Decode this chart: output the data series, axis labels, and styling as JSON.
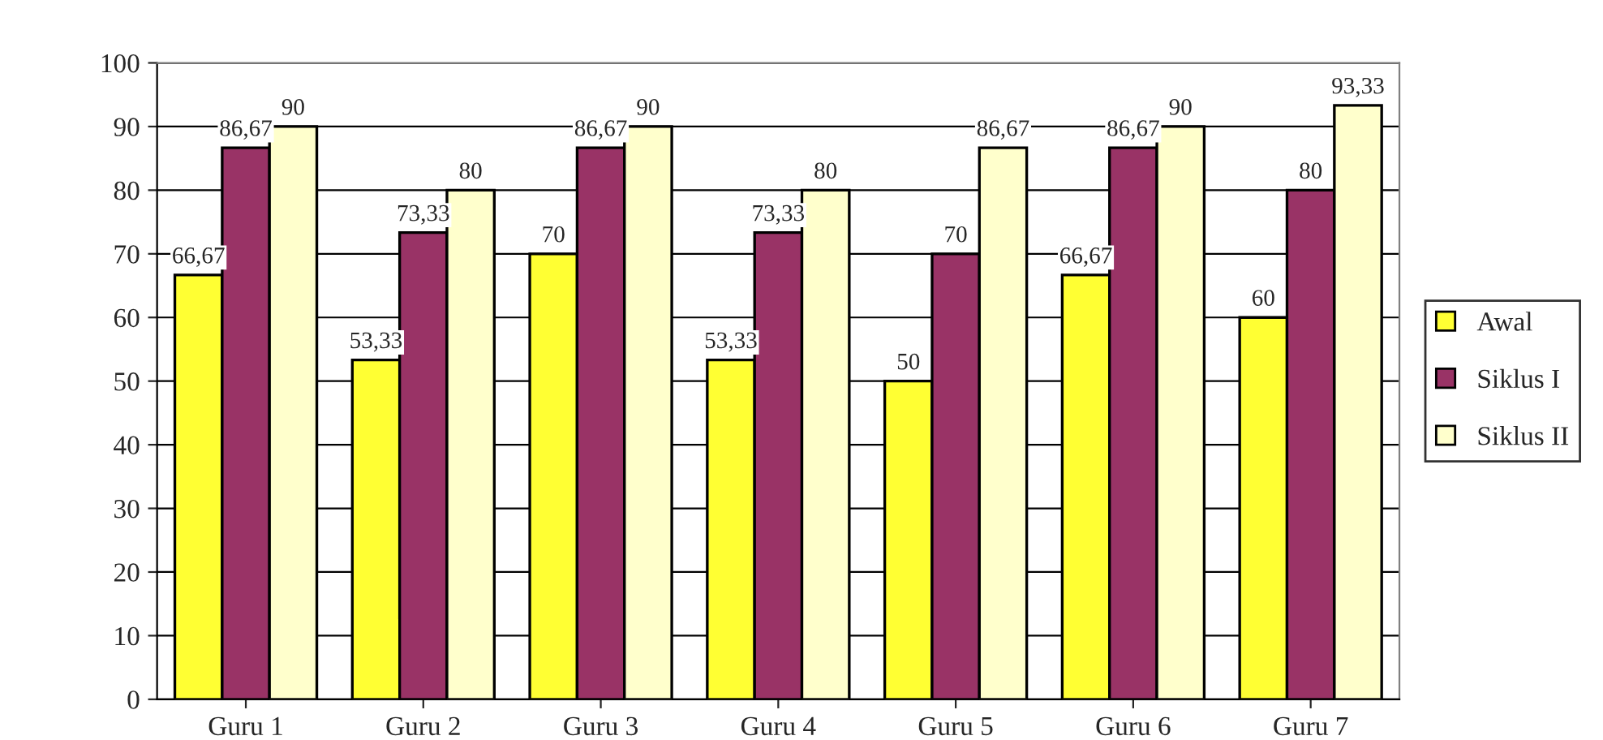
{
  "chart_data": {
    "type": "bar",
    "categories": [
      "Guru 1",
      "Guru 2",
      "Guru 3",
      "Guru 4",
      "Guru 5",
      "Guru 6",
      "Guru 7"
    ],
    "series": [
      {
        "name": "Awal",
        "color": "#ffff33",
        "values": [
          66.67,
          53.33,
          70,
          53.33,
          50,
          66.67,
          60
        ],
        "value_labels": [
          "66,67",
          "53,33",
          "70",
          "53,33",
          "50",
          "66,67",
          "60"
        ]
      },
      {
        "name": "Siklus I",
        "color": "#993366",
        "values": [
          86.67,
          73.33,
          86.67,
          73.33,
          70,
          86.67,
          80
        ],
        "value_labels": [
          "86,67",
          "73,33",
          "86,67",
          "73,33",
          "70",
          "86,67",
          "80"
        ]
      },
      {
        "name": "Siklus II",
        "color": "#ffffcc",
        "values": [
          90,
          80,
          90,
          80,
          86.67,
          90,
          93.33
        ],
        "value_labels": [
          "90",
          "80",
          "90",
          "80",
          "86,67",
          "90",
          "93,33"
        ]
      }
    ],
    "ylim": [
      0,
      100
    ],
    "yticks": [
      0,
      10,
      20,
      30,
      40,
      50,
      60,
      70,
      80,
      90,
      100
    ],
    "grid": "y",
    "legend": "right"
  }
}
